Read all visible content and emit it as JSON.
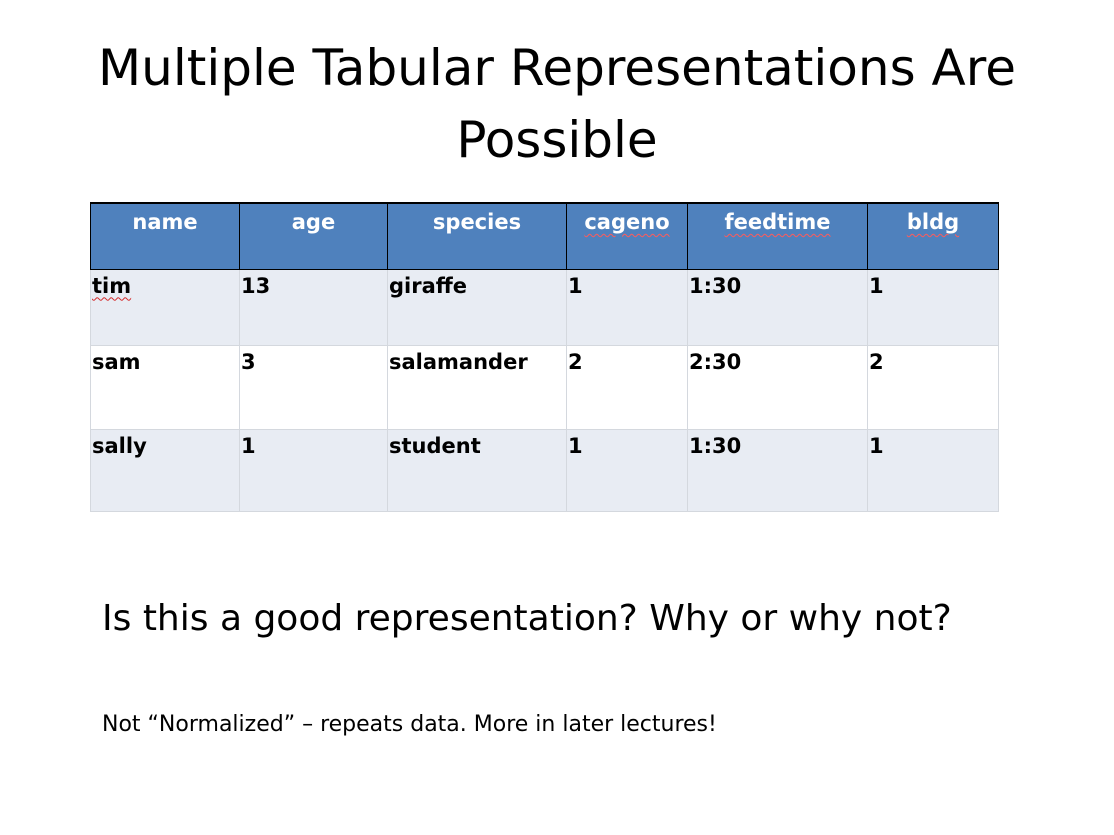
{
  "slide": {
    "title_line1": "Multiple Tabular Representations Are",
    "title_line2": "Possible",
    "question": "Is this a good representation?  Why or why not?",
    "note": "Not “Normalized” – repeats data.  More in later lectures!"
  },
  "table": {
    "headers": [
      "name",
      "age",
      "species",
      "cageno",
      "feedtime",
      "bldg"
    ],
    "rows": [
      [
        "tim",
        "13",
        "giraffe",
        "1",
        "1:30",
        "1"
      ],
      [
        "sam",
        "3",
        "salamander",
        "2",
        "2:30",
        "2"
      ],
      [
        "sally",
        "1",
        "student",
        "1",
        "1:30",
        "1"
      ]
    ]
  },
  "colors": {
    "header_bg": "#4f81bd",
    "row_alt_bg": "#e8ecf3",
    "spellcheck_underline": "#d42a2a"
  }
}
